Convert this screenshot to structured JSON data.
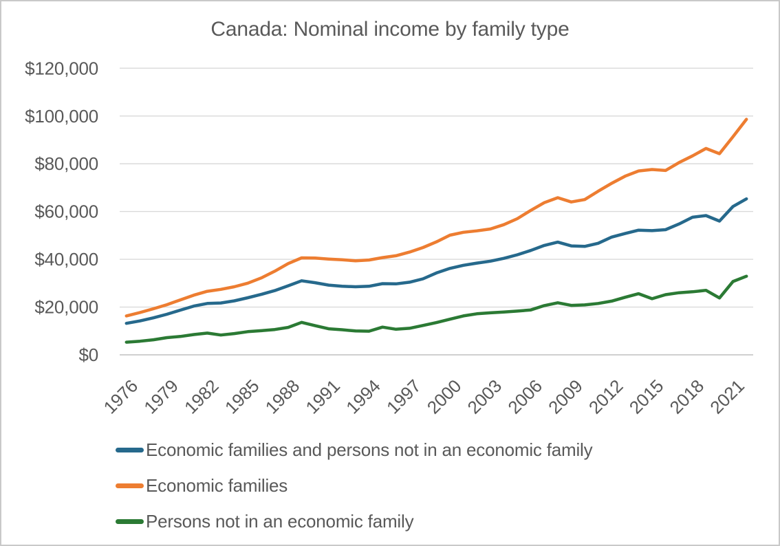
{
  "title": "Canada: Nominal income by family type",
  "chart_data": {
    "type": "line",
    "title": "Canada: Nominal income by family type",
    "x": [
      1976,
      1977,
      1978,
      1979,
      1980,
      1981,
      1982,
      1983,
      1984,
      1985,
      1986,
      1987,
      1988,
      1989,
      1990,
      1991,
      1992,
      1993,
      1994,
      1995,
      1996,
      1997,
      1998,
      1999,
      2000,
      2001,
      2002,
      2003,
      2004,
      2005,
      2006,
      2007,
      2008,
      2009,
      2010,
      2011,
      2012,
      2013,
      2014,
      2015,
      2016,
      2017,
      2018,
      2019,
      2020,
      2021,
      2022
    ],
    "x_tick_labels": [
      "1976",
      "1979",
      "1982",
      "1985",
      "1988",
      "1991",
      "1994",
      "1997",
      "2000",
      "2003",
      "2006",
      "2009",
      "2012",
      "2015",
      "2018",
      "2021"
    ],
    "y_ticks": [
      0,
      20000,
      40000,
      60000,
      80000,
      100000,
      120000
    ],
    "y_tick_labels": [
      "$0",
      "$20,000",
      "$40,000",
      "$60,000",
      "$80,000",
      "$100,000",
      "$120,000"
    ],
    "ylim": [
      0,
      120000
    ],
    "grid": "horizontal",
    "legend_position": "bottom-left",
    "series": [
      {
        "name": "Economic families and persons not in an economic family",
        "color": "#26698C",
        "values": [
          13200,
          14200,
          15500,
          17000,
          18700,
          20400,
          21500,
          21700,
          22600,
          23900,
          25300,
          26900,
          28900,
          31000,
          30200,
          29200,
          28700,
          28500,
          28700,
          29800,
          29700,
          30400,
          31800,
          34300,
          36200,
          37500,
          38400,
          39200,
          40400,
          41900,
          43700,
          45800,
          47200,
          45600,
          45400,
          46700,
          49300,
          50800,
          52200,
          52000,
          52400,
          54800,
          57600,
          58300,
          56000,
          62100,
          65300
        ]
      },
      {
        "name": "Economic families",
        "color": "#ED7D31",
        "values": [
          16300,
          17700,
          19300,
          21000,
          23000,
          25000,
          26600,
          27400,
          28500,
          30000,
          32200,
          35000,
          38200,
          40600,
          40500,
          40100,
          39800,
          39400,
          39700,
          40700,
          41500,
          43000,
          44900,
          47300,
          50100,
          51300,
          51900,
          52700,
          54500,
          57000,
          60500,
          63700,
          65800,
          64000,
          65000,
          68500,
          71800,
          74800,
          77000,
          77600,
          77200,
          80500,
          83300,
          86400,
          84200,
          91300,
          98600
        ]
      },
      {
        "name": "Persons not in an economic family",
        "color": "#2B7A34",
        "values": [
          5300,
          5700,
          6300,
          7200,
          7700,
          8500,
          9100,
          8300,
          8900,
          9700,
          10100,
          10600,
          11500,
          13600,
          12200,
          10900,
          10500,
          10000,
          9900,
          11600,
          10700,
          11100,
          12300,
          13500,
          14900,
          16300,
          17200,
          17600,
          17900,
          18300,
          18800,
          20600,
          21800,
          20700,
          20900,
          21500,
          22500,
          24100,
          25600,
          23500,
          25200,
          26000,
          26400,
          27000,
          23800,
          30700,
          32900
        ]
      }
    ]
  },
  "colors": {
    "text": "#595959",
    "gridline": "#D9D9D9",
    "axis_line": "#BFBFBF",
    "frame_border": "#C9C9C9",
    "background": "#FFFFFF"
  }
}
